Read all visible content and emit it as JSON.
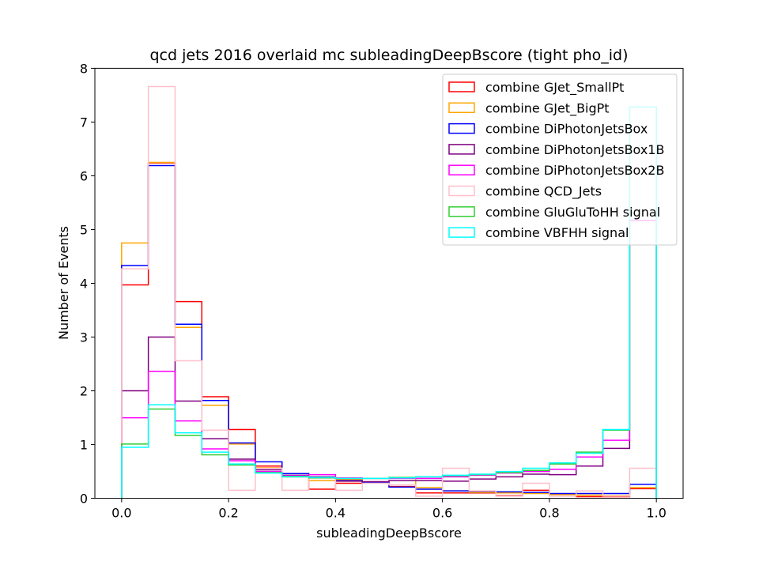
{
  "chart_data": {
    "type": "histogram-step",
    "title": "qcd jets 2016 overlaid mc subleadingDeepBscore (tight pho_id)",
    "xlabel": "subleadingDeepBscore",
    "ylabel": "Number of Events",
    "xlim": [
      -0.05,
      1.05
    ],
    "ylim": [
      0,
      8
    ],
    "xticks": [
      "0.0",
      "0.2",
      "0.4",
      "0.6",
      "0.8",
      "1.0"
    ],
    "yticks": [
      "0",
      "1",
      "2",
      "3",
      "4",
      "5",
      "6",
      "7",
      "8"
    ],
    "legend_position": "top-right",
    "bin_edges": [
      0.0,
      0.05,
      0.1,
      0.15,
      0.2,
      0.25,
      0.3,
      0.35,
      0.4,
      0.45,
      0.5,
      0.55,
      0.6,
      0.65,
      0.7,
      0.75,
      0.8,
      0.85,
      0.9,
      0.95,
      1.0
    ],
    "series": [
      {
        "name": "combine GJet_SmallPt",
        "color": "#ff0000",
        "values": [
          3.97,
          6.24,
          3.66,
          1.89,
          1.28,
          0.6,
          0.4,
          0.17,
          0.28,
          0.3,
          0.22,
          0.1,
          0.1,
          0.1,
          0.05,
          0.15,
          0.08,
          0.03,
          0.03,
          0.18
        ]
      },
      {
        "name": "combine GJet_BigPt",
        "color": "#ffa500",
        "values": [
          4.75,
          6.25,
          3.18,
          1.73,
          1.01,
          0.57,
          0.42,
          0.33,
          0.35,
          0.37,
          0.38,
          0.2,
          0.14,
          0.11,
          0.1,
          0.09,
          0.07,
          0.06,
          0.05,
          0.2
        ]
      },
      {
        "name": "combine DiPhotonJetsBox",
        "color": "#0000ff",
        "values": [
          4.33,
          6.19,
          3.24,
          1.82,
          1.03,
          0.68,
          0.46,
          0.39,
          0.33,
          0.3,
          0.21,
          0.17,
          0.14,
          0.13,
          0.12,
          0.11,
          0.09,
          0.09,
          0.09,
          0.26
        ]
      },
      {
        "name": "combine DiPhotonJetsBox1B",
        "color": "#800080",
        "values": [
          2.0,
          3.0,
          1.81,
          1.11,
          0.73,
          0.53,
          0.43,
          0.4,
          0.32,
          0.31,
          0.33,
          0.33,
          0.32,
          0.36,
          0.4,
          0.45,
          0.44,
          0.6,
          0.93,
          5.17
        ]
      },
      {
        "name": "combine DiPhotonJetsBox2B",
        "color": "#ff00ff",
        "values": [
          1.5,
          2.36,
          1.44,
          0.92,
          0.7,
          0.5,
          0.42,
          0.44,
          0.38,
          0.37,
          0.37,
          0.37,
          0.4,
          0.43,
          0.47,
          0.5,
          0.54,
          0.77,
          1.08,
          5.17
        ]
      },
      {
        "name": "combine QCD_Jets",
        "color": "#ffc0cb",
        "values": [
          4.27,
          7.66,
          2.56,
          1.27,
          0.15,
          0.56,
          0.15,
          0.38,
          0.15,
          0.28,
          0.25,
          0.04,
          0.56,
          0.14,
          0.04,
          0.28,
          0.04,
          0.14,
          0.04,
          0.56
        ]
      },
      {
        "name": "combine GluGluToHH signal",
        "color": "#32cd32",
        "values": [
          1.01,
          1.66,
          1.17,
          0.81,
          0.62,
          0.48,
          0.41,
          0.38,
          0.37,
          0.37,
          0.39,
          0.4,
          0.42,
          0.44,
          0.48,
          0.52,
          0.64,
          0.86,
          1.27,
          7.28
        ]
      },
      {
        "name": "combine VBFHH signal",
        "color": "#00ffff",
        "values": [
          0.95,
          1.74,
          1.22,
          0.86,
          0.64,
          0.47,
          0.4,
          0.39,
          0.37,
          0.37,
          0.38,
          0.4,
          0.43,
          0.45,
          0.5,
          0.56,
          0.66,
          0.84,
          1.28,
          7.28
        ]
      }
    ]
  }
}
